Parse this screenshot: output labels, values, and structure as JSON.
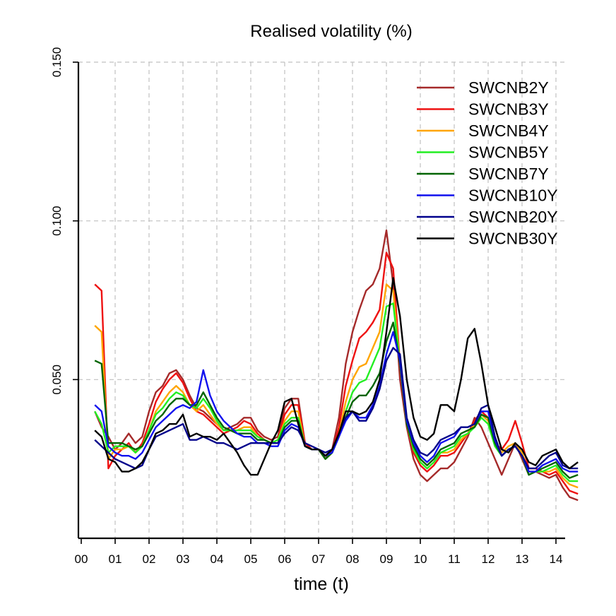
{
  "chart_data": {
    "type": "line",
    "title": "Realised volatility (%)",
    "xlabel": "time (t)",
    "ylabel": "",
    "xlim": [
      0,
      14.65
    ],
    "ylim": [
      0.0,
      0.15
    ],
    "x_ticks": [
      {
        "value": 0,
        "label": "00"
      },
      {
        "value": 1,
        "label": "01"
      },
      {
        "value": 2,
        "label": "02"
      },
      {
        "value": 3,
        "label": "03"
      },
      {
        "value": 4,
        "label": "04"
      },
      {
        "value": 5,
        "label": "05"
      },
      {
        "value": 6,
        "label": "06"
      },
      {
        "value": 7,
        "label": "07"
      },
      {
        "value": 8,
        "label": "08"
      },
      {
        "value": 9,
        "label": "09"
      },
      {
        "value": 10,
        "label": "10"
      },
      {
        "value": 11,
        "label": "11"
      },
      {
        "value": 12,
        "label": "12"
      },
      {
        "value": 13,
        "label": "13"
      },
      {
        "value": 14,
        "label": "14"
      }
    ],
    "y_ticks": [
      {
        "value": 0.05,
        "label": "0.050"
      },
      {
        "value": 0.1,
        "label": "0.100"
      },
      {
        "value": 0.15,
        "label": "0.150"
      }
    ],
    "grid": true,
    "legend_position": "top-right",
    "x": [
      0.4,
      0.6,
      0.8,
      1.0,
      1.2,
      1.4,
      1.6,
      1.8,
      2.0,
      2.2,
      2.4,
      2.6,
      2.8,
      3.0,
      3.2,
      3.4,
      3.6,
      3.8,
      4.0,
      4.2,
      4.4,
      4.6,
      4.8,
      5.0,
      5.2,
      5.4,
      5.6,
      5.8,
      6.0,
      6.2,
      6.4,
      6.6,
      6.8,
      7.0,
      7.2,
      7.4,
      7.6,
      7.8,
      8.0,
      8.2,
      8.4,
      8.6,
      8.8,
      9.0,
      9.2,
      9.4,
      9.6,
      9.8,
      10.0,
      10.2,
      10.4,
      10.6,
      10.8,
      11.0,
      11.2,
      11.4,
      11.6,
      11.8,
      12.0,
      12.2,
      12.4,
      12.6,
      12.8,
      13.0,
      13.2,
      13.4,
      13.6,
      13.8,
      14.0,
      14.2,
      14.4,
      14.65
    ],
    "series": [
      {
        "name": "SWCNB2Y",
        "color": "#a52a2a",
        "values": [
          0.04,
          0.035,
          0.032,
          0.028,
          0.03,
          0.033,
          0.03,
          0.032,
          0.04,
          0.046,
          0.048,
          0.052,
          0.053,
          0.05,
          0.045,
          0.041,
          0.04,
          0.038,
          0.036,
          0.034,
          0.035,
          0.036,
          0.038,
          0.038,
          0.034,
          0.032,
          0.031,
          0.032,
          0.041,
          0.044,
          0.044,
          0.03,
          0.028,
          0.028,
          0.025,
          0.028,
          0.038,
          0.055,
          0.065,
          0.072,
          0.078,
          0.08,
          0.085,
          0.097,
          0.08,
          0.05,
          0.035,
          0.025,
          0.02,
          0.018,
          0.02,
          0.022,
          0.022,
          0.024,
          0.028,
          0.032,
          0.038,
          0.035,
          0.03,
          0.025,
          0.02,
          0.025,
          0.03,
          0.025,
          0.02,
          0.021,
          0.02,
          0.019,
          0.02,
          0.016,
          0.013,
          0.012
        ]
      },
      {
        "name": "SWCNB3Y",
        "color": "#ee1111",
        "values": [
          0.08,
          0.078,
          0.022,
          0.026,
          0.028,
          0.03,
          0.027,
          0.03,
          0.036,
          0.043,
          0.047,
          0.05,
          0.052,
          0.049,
          0.044,
          0.04,
          0.039,
          0.037,
          0.035,
          0.033,
          0.034,
          0.035,
          0.037,
          0.036,
          0.033,
          0.031,
          0.03,
          0.031,
          0.039,
          0.042,
          0.042,
          0.03,
          0.028,
          0.028,
          0.025,
          0.027,
          0.035,
          0.048,
          0.056,
          0.063,
          0.065,
          0.068,
          0.072,
          0.09,
          0.085,
          0.055,
          0.036,
          0.027,
          0.023,
          0.021,
          0.023,
          0.026,
          0.026,
          0.027,
          0.03,
          0.033,
          0.037,
          0.04,
          0.038,
          0.03,
          0.028,
          0.031,
          0.037,
          0.03,
          0.022,
          0.022,
          0.021,
          0.02,
          0.021,
          0.018,
          0.015,
          0.014
        ]
      },
      {
        "name": "SWCNB4Y",
        "color": "#ffa500",
        "values": [
          0.067,
          0.065,
          0.025,
          0.028,
          0.028,
          0.029,
          0.027,
          0.029,
          0.034,
          0.04,
          0.043,
          0.046,
          0.048,
          0.046,
          0.042,
          0.04,
          0.042,
          0.039,
          0.036,
          0.034,
          0.034,
          0.034,
          0.035,
          0.035,
          0.032,
          0.031,
          0.03,
          0.031,
          0.037,
          0.04,
          0.04,
          0.029,
          0.028,
          0.028,
          0.025,
          0.027,
          0.033,
          0.043,
          0.05,
          0.054,
          0.055,
          0.06,
          0.065,
          0.08,
          0.078,
          0.055,
          0.037,
          0.028,
          0.024,
          0.022,
          0.024,
          0.027,
          0.027,
          0.028,
          0.031,
          0.033,
          0.036,
          0.039,
          0.037,
          0.03,
          0.027,
          0.029,
          0.03,
          0.027,
          0.021,
          0.021,
          0.021,
          0.021,
          0.022,
          0.019,
          0.017,
          0.016
        ]
      },
      {
        "name": "SWCNB5Y",
        "color": "#22ee22",
        "values": [
          0.04,
          0.036,
          0.027,
          0.029,
          0.029,
          0.029,
          0.027,
          0.029,
          0.034,
          0.039,
          0.041,
          0.044,
          0.046,
          0.045,
          0.042,
          0.041,
          0.044,
          0.041,
          0.037,
          0.034,
          0.034,
          0.034,
          0.034,
          0.034,
          0.032,
          0.031,
          0.03,
          0.031,
          0.036,
          0.038,
          0.038,
          0.029,
          0.028,
          0.028,
          0.025,
          0.027,
          0.032,
          0.04,
          0.046,
          0.049,
          0.05,
          0.055,
          0.06,
          0.073,
          0.074,
          0.055,
          0.036,
          0.028,
          0.024,
          0.022,
          0.024,
          0.027,
          0.028,
          0.029,
          0.032,
          0.033,
          0.035,
          0.038,
          0.036,
          0.029,
          0.026,
          0.028,
          0.029,
          0.026,
          0.02,
          0.021,
          0.021,
          0.022,
          0.023,
          0.02,
          0.018,
          0.018
        ]
      },
      {
        "name": "SWCNB7Y",
        "color": "#006400",
        "values": [
          0.056,
          0.055,
          0.03,
          0.03,
          0.03,
          0.029,
          0.028,
          0.029,
          0.033,
          0.037,
          0.039,
          0.042,
          0.044,
          0.044,
          0.042,
          0.042,
          0.046,
          0.042,
          0.038,
          0.035,
          0.034,
          0.033,
          0.033,
          0.033,
          0.031,
          0.031,
          0.03,
          0.03,
          0.035,
          0.037,
          0.037,
          0.029,
          0.028,
          0.028,
          0.025,
          0.027,
          0.032,
          0.038,
          0.043,
          0.045,
          0.045,
          0.048,
          0.052,
          0.062,
          0.068,
          0.055,
          0.036,
          0.029,
          0.025,
          0.023,
          0.025,
          0.028,
          0.029,
          0.03,
          0.033,
          0.034,
          0.035,
          0.039,
          0.038,
          0.03,
          0.026,
          0.028,
          0.029,
          0.026,
          0.02,
          0.021,
          0.022,
          0.023,
          0.024,
          0.021,
          0.019,
          0.02
        ]
      },
      {
        "name": "SWCNB10Y",
        "color": "#1010ee",
        "values": [
          0.042,
          0.04,
          0.029,
          0.027,
          0.026,
          0.026,
          0.025,
          0.027,
          0.031,
          0.035,
          0.037,
          0.039,
          0.041,
          0.042,
          0.041,
          0.043,
          0.053,
          0.045,
          0.04,
          0.037,
          0.035,
          0.033,
          0.032,
          0.032,
          0.03,
          0.03,
          0.029,
          0.029,
          0.034,
          0.036,
          0.035,
          0.029,
          0.028,
          0.028,
          0.026,
          0.027,
          0.032,
          0.037,
          0.04,
          0.038,
          0.038,
          0.042,
          0.048,
          0.058,
          0.065,
          0.056,
          0.037,
          0.03,
          0.026,
          0.024,
          0.026,
          0.03,
          0.031,
          0.032,
          0.035,
          0.035,
          0.036,
          0.04,
          0.04,
          0.031,
          0.026,
          0.028,
          0.029,
          0.026,
          0.021,
          0.021,
          0.023,
          0.024,
          0.025,
          0.022,
          0.021,
          0.021
        ]
      },
      {
        "name": "SWCNB20Y",
        "color": "#00008b",
        "values": [
          0.031,
          0.029,
          0.027,
          0.025,
          0.024,
          0.023,
          0.022,
          0.023,
          0.028,
          0.032,
          0.033,
          0.034,
          0.035,
          0.036,
          0.031,
          0.031,
          0.032,
          0.031,
          0.03,
          0.03,
          0.029,
          0.028,
          0.029,
          0.03,
          0.03,
          0.03,
          0.03,
          0.03,
          0.033,
          0.035,
          0.034,
          0.03,
          0.029,
          0.028,
          0.027,
          0.028,
          0.033,
          0.038,
          0.04,
          0.037,
          0.037,
          0.041,
          0.047,
          0.056,
          0.06,
          0.058,
          0.038,
          0.031,
          0.027,
          0.026,
          0.028,
          0.031,
          0.032,
          0.033,
          0.035,
          0.035,
          0.036,
          0.041,
          0.042,
          0.032,
          0.026,
          0.028,
          0.029,
          0.026,
          0.022,
          0.022,
          0.024,
          0.026,
          0.027,
          0.023,
          0.022,
          0.022
        ]
      },
      {
        "name": "SWCNB30Y",
        "color": "#000000",
        "values": [
          0.034,
          0.032,
          0.025,
          0.024,
          0.021,
          0.021,
          0.022,
          0.024,
          0.028,
          0.033,
          0.034,
          0.036,
          0.036,
          0.039,
          0.032,
          0.033,
          0.032,
          0.032,
          0.031,
          0.033,
          0.03,
          0.027,
          0.023,
          0.02,
          0.02,
          0.025,
          0.03,
          0.034,
          0.043,
          0.044,
          0.036,
          0.029,
          0.028,
          0.028,
          0.026,
          0.028,
          0.033,
          0.04,
          0.04,
          0.039,
          0.04,
          0.043,
          0.05,
          0.065,
          0.082,
          0.07,
          0.05,
          0.038,
          0.032,
          0.031,
          0.033,
          0.042,
          0.042,
          0.04,
          0.05,
          0.063,
          0.066,
          0.055,
          0.042,
          0.035,
          0.028,
          0.027,
          0.03,
          0.028,
          0.024,
          0.023,
          0.026,
          0.027,
          0.028,
          0.024,
          0.022,
          0.024
        ]
      }
    ]
  }
}
